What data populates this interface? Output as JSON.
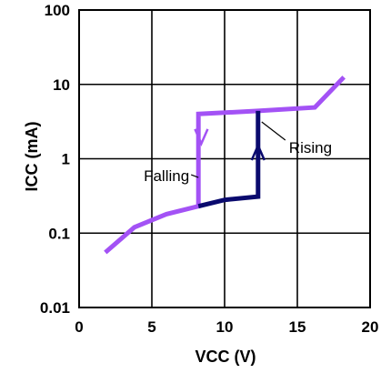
{
  "chart_data": {
    "type": "line",
    "xlabel": "VCC (V)",
    "ylabel": "ICC (mA)",
    "xlim": [
      0,
      20
    ],
    "ylim": [
      0.01,
      100
    ],
    "y_scale": "log",
    "grid": true,
    "x_ticks": [
      0,
      5,
      10,
      15,
      20
    ],
    "x_tick_labels": [
      "0",
      "5",
      "10",
      "15",
      "20"
    ],
    "y_ticks": [
      0.01,
      0.1,
      1,
      10,
      100
    ],
    "y_tick_labels": [
      "0.01",
      "0.1",
      "1",
      "10",
      "100"
    ],
    "series": [
      {
        "name": "Falling",
        "color": "#a352f5",
        "points": [
          [
            1.8,
            0.055
          ],
          [
            3.8,
            0.12
          ],
          [
            6.0,
            0.18
          ],
          [
            8.2,
            0.23
          ],
          [
            8.2,
            4.0
          ],
          [
            12.3,
            4.4
          ],
          [
            16.2,
            4.9
          ],
          [
            18.2,
            12.5
          ]
        ],
        "arrow": {
          "direction": "down",
          "at": [
            8.4,
            2.0
          ]
        }
      },
      {
        "name": "Rising",
        "color": "#0a0a6e",
        "points": [
          [
            8.2,
            0.23
          ],
          [
            10.0,
            0.28
          ],
          [
            12.3,
            0.31
          ],
          [
            12.3,
            4.4
          ]
        ],
        "arrow": {
          "direction": "up",
          "at": [
            12.3,
            1.2
          ]
        }
      }
    ],
    "annotations": [
      {
        "text": "Falling",
        "anchor": [
          8.2,
          0.5
        ],
        "side": "left"
      },
      {
        "text": "Rising",
        "anchor": [
          12.3,
          2.5
        ],
        "side": "right"
      }
    ]
  },
  "colors": {
    "falling": "#a352f5",
    "rising": "#0a0a6e",
    "grid": "#000000",
    "background": "#ffffff"
  }
}
